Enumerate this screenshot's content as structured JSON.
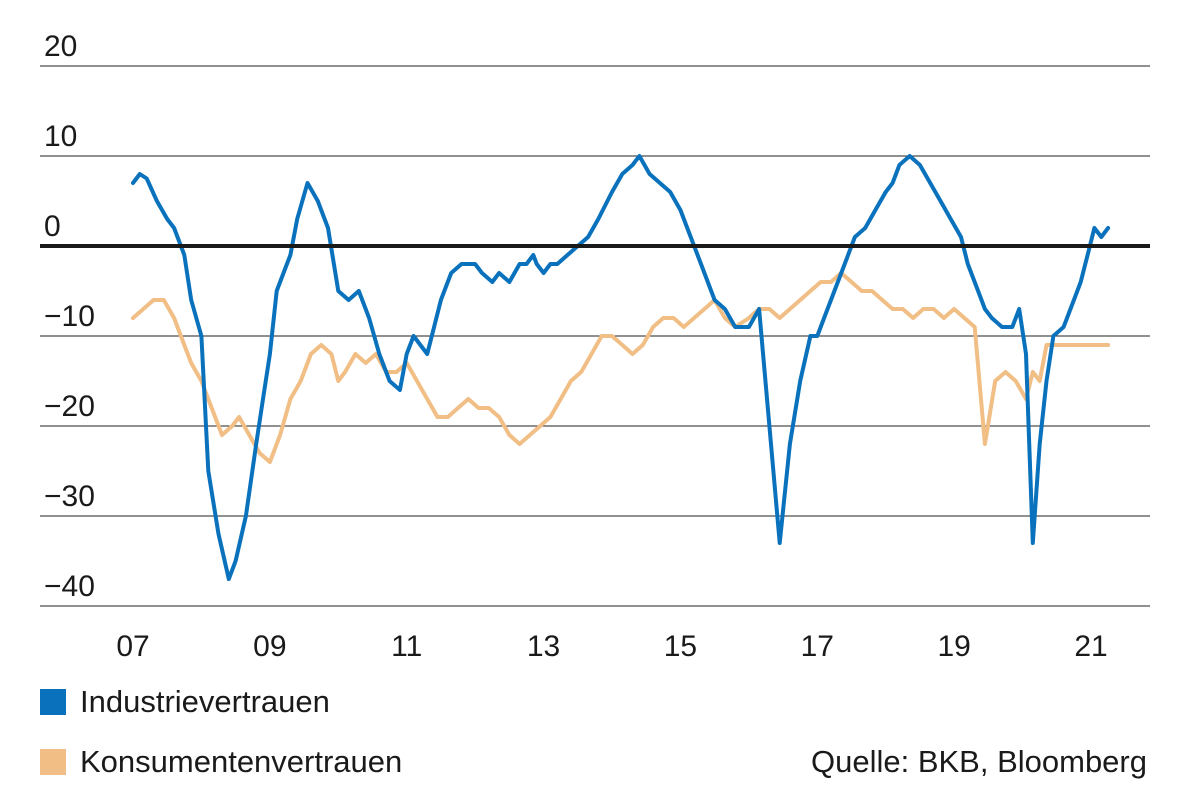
{
  "colors": {
    "industrie": "#0a72bc",
    "konsumenten": "#f1be85",
    "zero_line": "#1a1a1a",
    "grid": "#222222"
  },
  "legend": [
    {
      "label": "Industrievertrauen",
      "color": "#0a72bc"
    },
    {
      "label": "Konsumentenvertrauen",
      "color": "#f1be85"
    }
  ],
  "source": "Quelle: BKB, Bloomberg",
  "chart_data": {
    "type": "line",
    "title": "",
    "xlabel": "",
    "ylabel": "",
    "ylim": [
      -40,
      20
    ],
    "yticks": [
      20,
      10,
      0,
      -10,
      -20,
      -30,
      -40
    ],
    "ytick_labels": [
      "20",
      "10",
      "0",
      "−10",
      "−20",
      "−30",
      "−40"
    ],
    "xlim": [
      2007.0,
      2021.5
    ],
    "xticks": [
      2007,
      2009,
      2011,
      2013,
      2015,
      2017,
      2019,
      2021
    ],
    "xtick_labels": [
      "07",
      "09",
      "11",
      "13",
      "15",
      "17",
      "19",
      "21"
    ],
    "grid": "horizontal",
    "legend_position": "bottom-left",
    "series": [
      {
        "name": "Industrievertrauen",
        "x": [
          2007.0,
          2007.1,
          2007.2,
          2007.35,
          2007.5,
          2007.6,
          2007.75,
          2007.85,
          2008.0,
          2008.1,
          2008.25,
          2008.4,
          2008.5,
          2008.65,
          2008.8,
          2008.9,
          2009.0,
          2009.1,
          2009.2,
          2009.3,
          2009.4,
          2009.55,
          2009.7,
          2009.85,
          2010.0,
          2010.15,
          2010.3,
          2010.45,
          2010.6,
          2010.75,
          2010.9,
          2011.0,
          2011.1,
          2011.2,
          2011.3,
          2011.4,
          2011.5,
          2011.65,
          2011.8,
          2012.0,
          2012.1,
          2012.25,
          2012.35,
          2012.5,
          2012.65,
          2012.75,
          2012.85,
          2012.9,
          2013.0,
          2013.1,
          2013.2,
          2013.35,
          2013.5,
          2013.65,
          2013.8,
          2014.0,
          2014.15,
          2014.3,
          2014.4,
          2014.55,
          2014.7,
          2014.85,
          2015.0,
          2015.15,
          2015.3,
          2015.5,
          2015.65,
          2015.8,
          2016.0,
          2016.15,
          2016.3,
          2016.45,
          2016.6,
          2016.75,
          2016.9,
          2017.0,
          2017.1,
          2017.25,
          2017.4,
          2017.55,
          2017.7,
          2017.85,
          2018.0,
          2018.1,
          2018.2,
          2018.35,
          2018.5,
          2018.65,
          2018.8,
          2018.95,
          2019.1,
          2019.2,
          2019.35,
          2019.45,
          2019.55,
          2019.7,
          2019.85,
          2019.95,
          2020.05,
          2020.15,
          2020.25,
          2020.35,
          2020.45,
          2020.6,
          2020.75,
          2020.85,
          2020.95,
          2021.05,
          2021.15,
          2021.25
        ],
        "y": [
          7,
          8,
          7.5,
          5,
          3,
          2,
          -1,
          -6,
          -10,
          -25,
          -32,
          -37,
          -35,
          -30,
          -22,
          -17,
          -12,
          -5,
          -3,
          -1,
          3,
          7,
          5,
          2,
          -5,
          -6,
          -5,
          -8,
          -12,
          -15,
          -16,
          -12,
          -10,
          -11,
          -12,
          -9,
          -6,
          -3,
          -2,
          -2,
          -3,
          -4,
          -3,
          -4,
          -2,
          -2,
          -1,
          -2,
          -3,
          -2,
          -2,
          -1,
          0,
          1,
          3,
          6,
          8,
          9,
          10,
          8,
          7,
          6,
          4,
          1,
          -2,
          -6,
          -7,
          -9,
          -9,
          -7,
          -20,
          -33,
          -22,
          -15,
          -10,
          -10,
          -8,
          -5,
          -2,
          1,
          2,
          4,
          6,
          7,
          9,
          10,
          9,
          7,
          5,
          3,
          1,
          -2,
          -5,
          -7,
          -8,
          -9,
          -9,
          -7,
          -12,
          -33,
          -22,
          -15,
          -10,
          -9,
          -6,
          -4,
          -1,
          2,
          1,
          2
        ]
      },
      {
        "name": "Konsumentenvertrauen",
        "x": [
          2007.0,
          2007.15,
          2007.3,
          2007.45,
          2007.6,
          2007.75,
          2007.85,
          2008.0,
          2008.15,
          2008.3,
          2008.45,
          2008.55,
          2008.7,
          2008.85,
          2009.0,
          2009.15,
          2009.3,
          2009.45,
          2009.6,
          2009.75,
          2009.9,
          2010.0,
          2010.1,
          2010.25,
          2010.4,
          2010.55,
          2010.7,
          2010.85,
          2011.0,
          2011.15,
          2011.3,
          2011.45,
          2011.6,
          2011.75,
          2011.9,
          2012.05,
          2012.2,
          2012.35,
          2012.5,
          2012.65,
          2012.8,
          2012.95,
          2013.1,
          2013.25,
          2013.4,
          2013.55,
          2013.7,
          2013.85,
          2014.0,
          2014.15,
          2014.3,
          2014.45,
          2014.6,
          2014.75,
          2014.9,
          2015.05,
          2015.2,
          2015.35,
          2015.5,
          2015.65,
          2015.8,
          2016.0,
          2016.15,
          2016.3,
          2016.45,
          2016.6,
          2016.75,
          2016.9,
          2017.05,
          2017.2,
          2017.35,
          2017.5,
          2017.65,
          2017.8,
          2017.95,
          2018.1,
          2018.25,
          2018.4,
          2018.55,
          2018.7,
          2018.85,
          2019.0,
          2019.15,
          2019.3,
          2019.45,
          2019.6,
          2019.75,
          2019.9,
          2020.05,
          2020.15,
          2020.25,
          2020.35,
          2020.5,
          2020.65,
          2020.8,
          2020.95,
          2021.05,
          2021.15,
          2021.25
        ],
        "y": [
          -8,
          -7,
          -6,
          -6,
          -8,
          -11,
          -13,
          -15,
          -18,
          -21,
          -20,
          -19,
          -21,
          -23,
          -24,
          -21,
          -17,
          -15,
          -12,
          -11,
          -12,
          -15,
          -14,
          -12,
          -13,
          -12,
          -14,
          -14,
          -13,
          -15,
          -17,
          -19,
          -19,
          -18,
          -17,
          -18,
          -18,
          -19,
          -21,
          -22,
          -21,
          -20,
          -19,
          -17,
          -15,
          -14,
          -12,
          -10,
          -10,
          -11,
          -12,
          -11,
          -9,
          -8,
          -8,
          -9,
          -8,
          -7,
          -6,
          -8,
          -9,
          -8,
          -7,
          -7,
          -8,
          -7,
          -6,
          -5,
          -4,
          -4,
          -3,
          -4,
          -5,
          -5,
          -6,
          -7,
          -7,
          -8,
          -7,
          -7,
          -8,
          -7,
          -8,
          -9,
          -22,
          -15,
          -14,
          -15,
          -17,
          -14,
          -15,
          -11,
          -11,
          -11,
          -11,
          -11,
          -11,
          -11,
          -11
        ]
      }
    ]
  }
}
